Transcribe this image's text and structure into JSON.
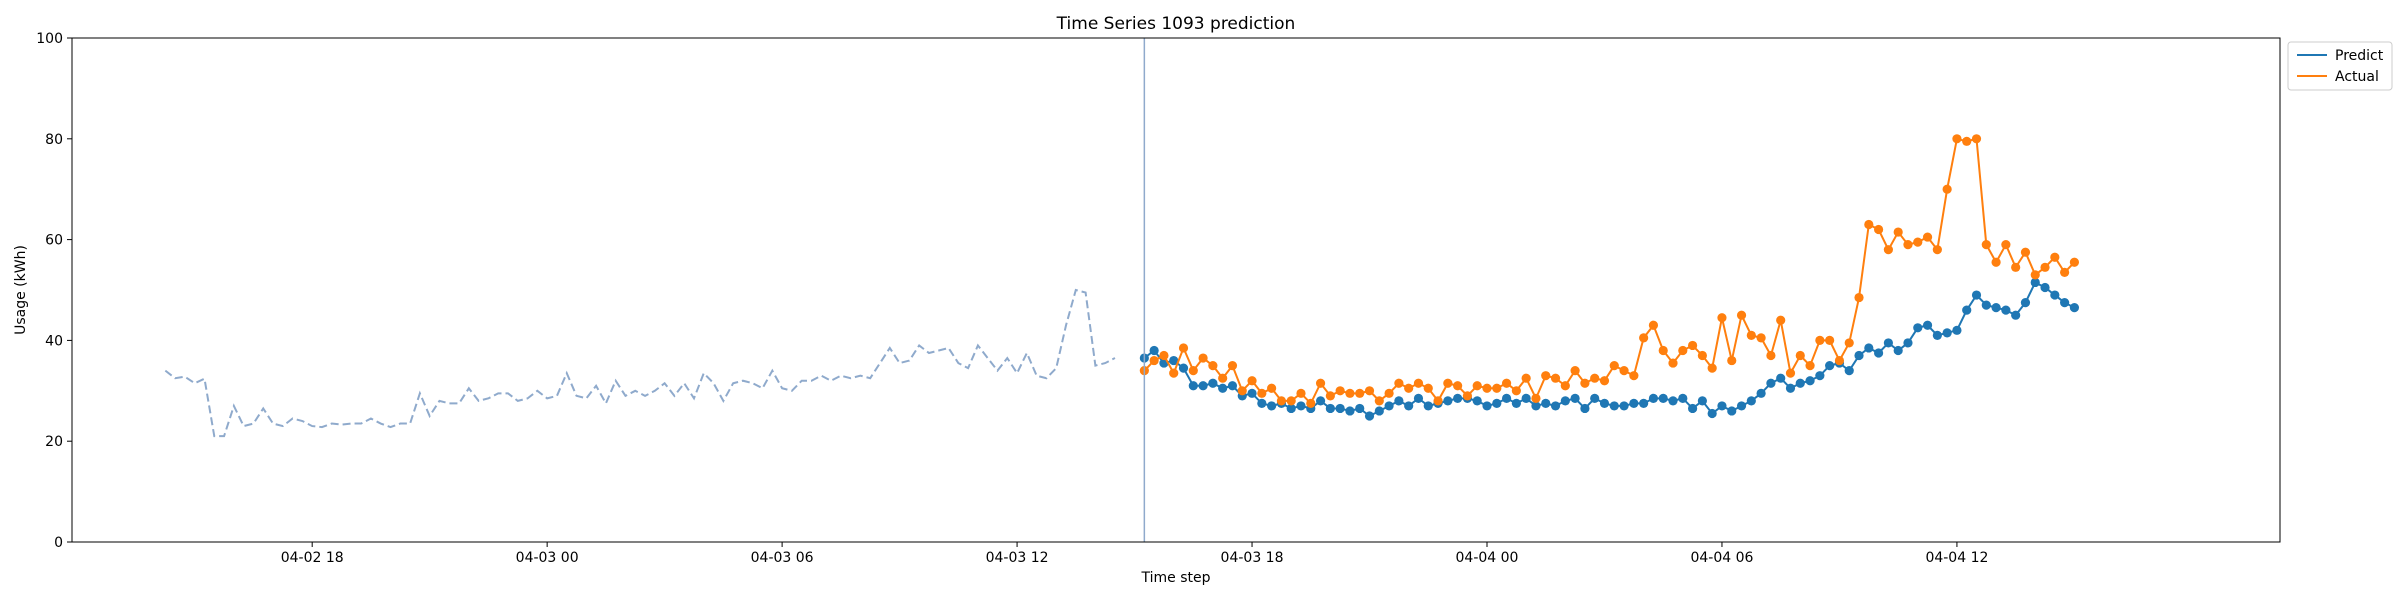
{
  "chart_data": {
    "type": "line",
    "title": "Time Series 1093 prediction",
    "xlabel": "Time step",
    "ylabel": "Usage (kWh)",
    "ylim": [
      0,
      100
    ],
    "yticks": [
      0,
      20,
      40,
      60,
      80,
      100
    ],
    "xlim": [
      "04-02 11:52",
      "04-04 20:15"
    ],
    "xticks": [
      {
        "label": "04-02 18",
        "t": "04-02 18:00"
      },
      {
        "label": "04-03 00",
        "t": "04-03 00:00"
      },
      {
        "label": "04-03 06",
        "t": "04-03 06:00"
      },
      {
        "label": "04-03 12",
        "t": "04-03 12:00"
      },
      {
        "label": "04-03 18",
        "t": "04-03 18:00"
      },
      {
        "label": "04-04 00",
        "t": "04-04 00:00"
      },
      {
        "label": "04-04 06",
        "t": "04-04 06:00"
      },
      {
        "label": "04-04 12",
        "t": "04-04 12:00"
      }
    ],
    "grid": false,
    "legend": "upper-right-outside",
    "forecast_start": "04-03 15:15",
    "colors": {
      "history": "#8faacc",
      "predict": "#1f77b4",
      "actual": "#ff7f0e",
      "divider": "#8faacc"
    },
    "history": {
      "start": "04-02 14:15",
      "step_minutes": 15,
      "values": [
        34,
        32.5,
        32.8,
        31.5,
        32.4,
        21,
        21,
        27,
        23,
        23.5,
        26.5,
        23.5,
        23,
        24.5,
        24,
        23,
        22.8,
        23.5,
        23.3,
        23.5,
        23.5,
        24.5,
        23.5,
        22.8,
        23.5,
        23.5,
        29.5,
        25,
        28,
        27.5,
        27.5,
        30.5,
        28,
        28.5,
        29.5,
        29.5,
        28,
        28.5,
        30,
        28.5,
        29,
        33.5,
        29,
        28.5,
        31,
        27.5,
        32,
        29,
        30,
        29,
        30,
        31.5,
        29,
        31.5,
        28.5,
        33.5,
        31.5,
        28,
        31.5,
        32,
        31.5,
        30.5,
        34,
        30.5,
        30,
        32,
        32,
        33,
        32,
        33,
        32.5,
        33,
        32.5,
        35.5,
        38.5,
        35.5,
        36,
        39,
        37.5,
        38,
        38.5,
        35.5,
        34.5,
        39,
        36.5,
        34,
        36.5,
        33.5,
        37.5,
        33,
        32.5,
        34.5,
        43,
        50,
        49.5,
        35,
        35.5,
        36.5
      ]
    },
    "series": [
      {
        "name": "Predict",
        "start": "04-03 15:15",
        "step_minutes": 15,
        "values": [
          36.5,
          38,
          35.5,
          36,
          34.5,
          31,
          31,
          31.5,
          30.5,
          31,
          29,
          29.5,
          27.5,
          27,
          27.5,
          26.5,
          27,
          26.5,
          28,
          26.5,
          26.5,
          26,
          26.5,
          25,
          26,
          27,
          28,
          27,
          28.5,
          27,
          27.5,
          28,
          28.5,
          28.5,
          28,
          27,
          27.5,
          28.5,
          27.5,
          28.5,
          27,
          27.5,
          27,
          28,
          28.5,
          26.5,
          28.5,
          27.5,
          27,
          27,
          27.5,
          27.5,
          28.5,
          28.5,
          28,
          28.5,
          26.5,
          28,
          25.5,
          27,
          26,
          27,
          28,
          29.5,
          31.5,
          32.5,
          30.5,
          31.5,
          32,
          33,
          35,
          35.5,
          34,
          37,
          38.5,
          37.5,
          39.5,
          38,
          39.5,
          42.5,
          43,
          41,
          41.5,
          42,
          46,
          49,
          47,
          46.5,
          46,
          45,
          47.5,
          51.5,
          50.5,
          49,
          47.5,
          46.5
        ]
      },
      {
        "name": "Actual",
        "start": "04-03 15:15",
        "step_minutes": 15,
        "values": [
          34,
          36,
          37,
          33.5,
          38.5,
          34,
          36.5,
          35,
          32.5,
          35,
          30,
          32,
          29.5,
          30.5,
          28,
          28,
          29.5,
          27.5,
          31.5,
          29,
          30,
          29.5,
          29.5,
          30,
          28,
          29.5,
          31.5,
          30.5,
          31.5,
          30.5,
          28,
          31.5,
          31,
          29,
          31,
          30.5,
          30.5,
          31.5,
          30,
          32.5,
          28.5,
          33,
          32.5,
          31,
          34,
          31.5,
          32.5,
          32,
          35,
          34,
          33,
          40.5,
          43,
          38,
          35.5,
          38,
          39,
          37,
          34.5,
          44.5,
          36,
          45,
          41,
          40.5,
          37,
          44,
          33.5,
          37,
          35,
          40,
          40,
          36,
          39.5,
          48.5,
          63,
          62,
          58,
          61.5,
          59,
          59.5,
          60.5,
          58,
          70,
          80,
          79.5,
          80,
          59,
          55.5,
          59,
          54.5,
          57.5,
          53,
          54.5,
          56.5,
          53.5,
          55.5
        ]
      }
    ]
  }
}
